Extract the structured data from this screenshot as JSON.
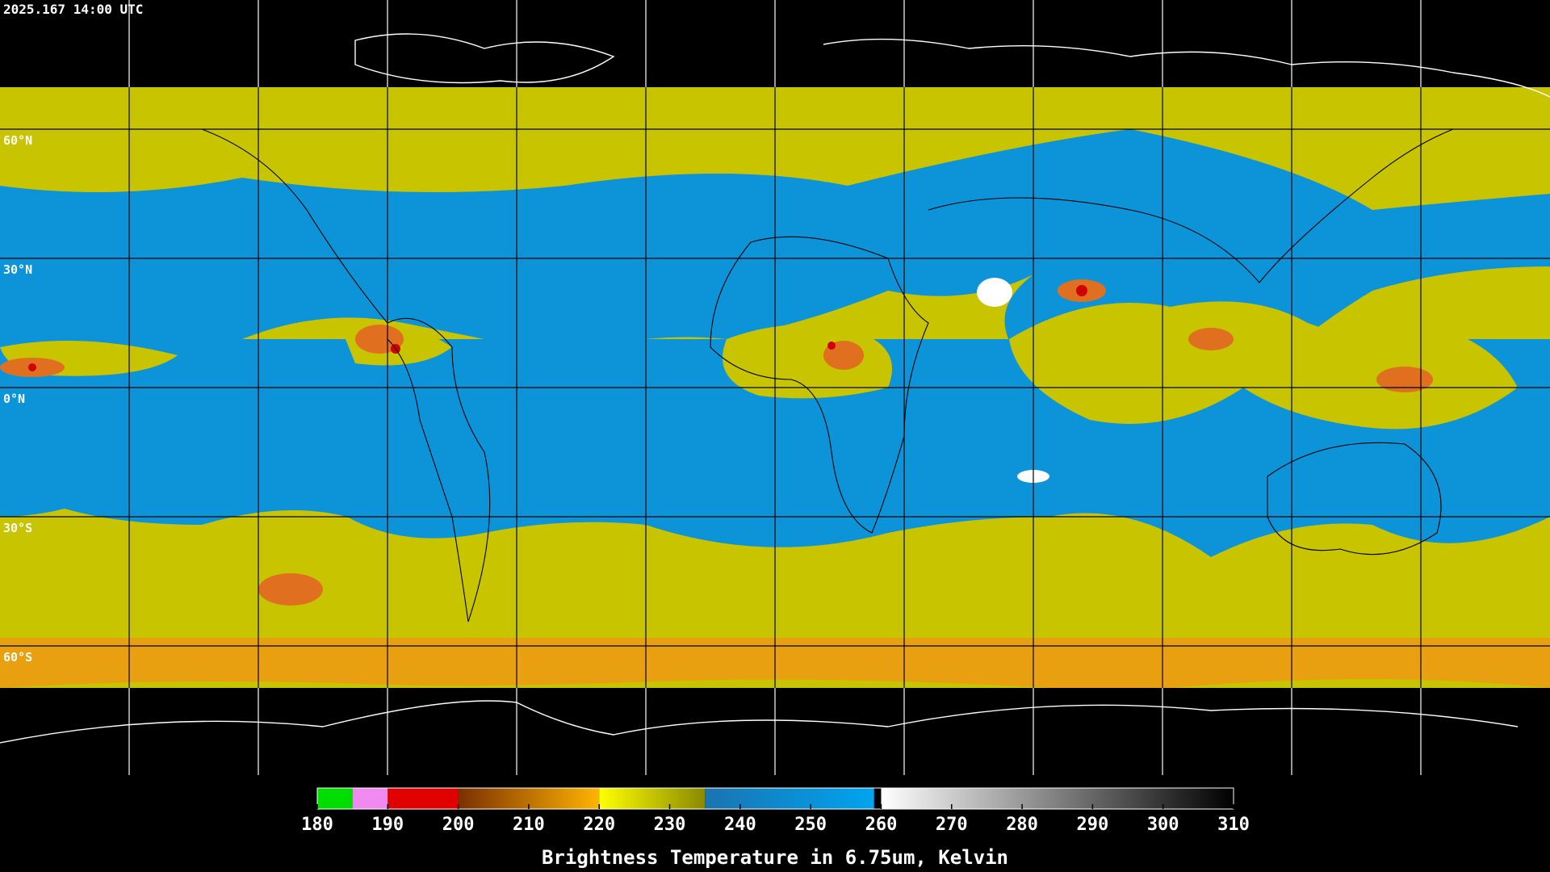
{
  "header": {
    "timestamp": "2025.167 14:00 UTC"
  },
  "map": {
    "lat_labels": [
      "60°N",
      "30°N",
      "0°N",
      "30°S",
      "60°S"
    ]
  },
  "colorbar": {
    "range": [
      180,
      310
    ],
    "ticks": [
      180,
      190,
      200,
      210,
      220,
      230,
      240,
      250,
      260,
      270,
      280,
      290,
      300,
      310
    ],
    "segments": [
      {
        "from": 180,
        "to": 185,
        "colors": [
          "#00dd00",
          "#00dd00"
        ]
      },
      {
        "from": 185,
        "to": 190,
        "colors": [
          "#f08af0",
          "#f08af0"
        ]
      },
      {
        "from": 190,
        "to": 200,
        "colors": [
          "#e00000",
          "#e00000"
        ]
      },
      {
        "from": 200,
        "to": 220,
        "colors": [
          "#7a3000",
          "#ffb400"
        ]
      },
      {
        "from": 220,
        "to": 235,
        "colors": [
          "#ffff00",
          "#8a8a00"
        ]
      },
      {
        "from": 235,
        "to": 259,
        "colors": [
          "#1a74b0",
          "#00a4f0"
        ]
      },
      {
        "from": 260,
        "to": 310,
        "colors": [
          "#ffffff",
          "#000000"
        ]
      }
    ],
    "label": "Brightness Temperature in 6.75um, Kelvin"
  }
}
